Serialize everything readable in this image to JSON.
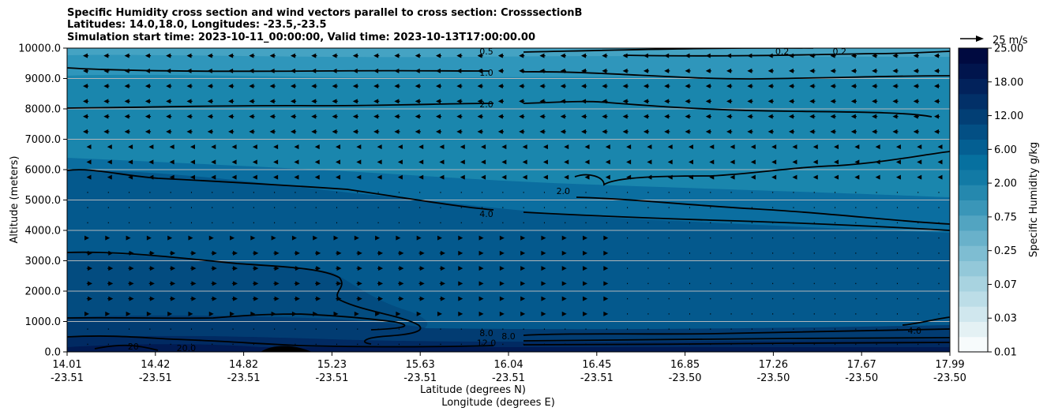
{
  "chart_data": {
    "type": "contour",
    "title_lines": [
      "Specific Humidity cross section and wind vectors parallel to cross section: CrosssectionB",
      "Latitudes: 14.0,18.0, Longitudes: -23.5,-23.5",
      "Simulation start time: 2023-10-11_00:00:00, Valid time: 2023-10-13T17:00:00.00"
    ],
    "ylabel": "Altitude (meters)",
    "xlabel_lat": "Latitude (degrees N)",
    "xlabel_lon": "Longitude (degrees E)",
    "ylim": [
      0,
      10000
    ],
    "y_ticks": [
      "0.0",
      "1000.0",
      "2000.0",
      "3000.0",
      "4000.0",
      "5000.0",
      "6000.0",
      "7000.0",
      "8000.0",
      "9000.0",
      "10000.0"
    ],
    "x_ticks": [
      {
        "lat": "14.01",
        "lon": "-23.51"
      },
      {
        "lat": "14.42",
        "lon": "-23.51"
      },
      {
        "lat": "14.82",
        "lon": "-23.51"
      },
      {
        "lat": "15.23",
        "lon": "-23.51"
      },
      {
        "lat": "15.63",
        "lon": "-23.51"
      },
      {
        "lat": "16.04",
        "lon": "-23.51"
      },
      {
        "lat": "16.45",
        "lon": "-23.51"
      },
      {
        "lat": "16.85",
        "lon": "-23.50"
      },
      {
        "lat": "17.26",
        "lon": "-23.50"
      },
      {
        "lat": "17.67",
        "lon": "-23.50"
      },
      {
        "lat": "17.99",
        "lon": "-23.50"
      }
    ],
    "colorbar": {
      "label": "Specific Humidity g/kg",
      "tick_labels": [
        "0.01",
        "0.03",
        "0.07",
        "0.25",
        "0.75",
        "2.00",
        "6.00",
        "12.00",
        "18.00",
        "25.00"
      ],
      "colors": [
        "#f7fbfc",
        "#e4f1f4",
        "#d0e7ee",
        "#bcdde7",
        "#a8d3e0",
        "#93c8d9",
        "#7ebdd2",
        "#69b1ca",
        "#52a4c1",
        "#3a96b8",
        "#2588ae",
        "#127aa5",
        "#06709f",
        "#045f92",
        "#034f84",
        "#023f75",
        "#023068",
        "#02225b",
        "#01154d",
        "#000a40"
      ]
    },
    "wind_key": {
      "label": "25 m/s",
      "speed": 25
    },
    "contour_labels": [
      {
        "text": "0.5",
        "x_frac": 0.475,
        "alt": 9900
      },
      {
        "text": "1.0",
        "x_frac": 0.475,
        "alt": 9200
      },
      {
        "text": "2.0",
        "x_frac": 0.475,
        "alt": 8150
      },
      {
        "text": "0.2",
        "x_frac": 0.81,
        "alt": 9900
      },
      {
        "text": "0.2",
        "x_frac": 0.875,
        "alt": 9900
      },
      {
        "text": "2.0",
        "x_frac": 0.562,
        "alt": 5300
      },
      {
        "text": "4.0",
        "x_frac": 0.475,
        "alt": 4550
      },
      {
        "text": "4.0",
        "x_frac": 0.96,
        "alt": 700
      },
      {
        "text": "8.0",
        "x_frac": 0.475,
        "alt": 620
      },
      {
        "text": "8.0",
        "x_frac": 0.5,
        "alt": 520
      },
      {
        "text": "12.0",
        "x_frac": 0.475,
        "alt": 300
      },
      {
        "text": "20",
        "x_frac": 0.075,
        "alt": 180
      },
      {
        "text": "20.0",
        "x_frac": 0.135,
        "alt": 130
      }
    ]
  }
}
